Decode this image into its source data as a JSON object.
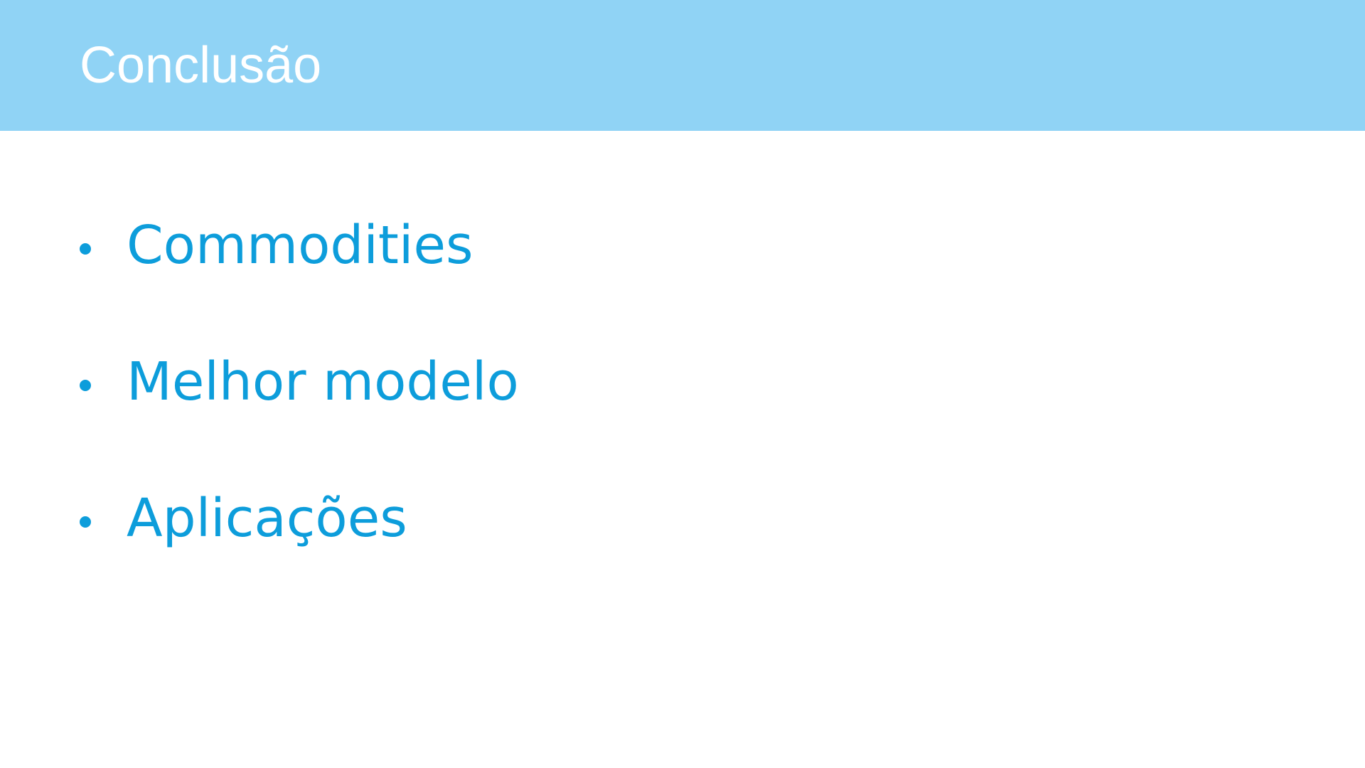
{
  "slide": {
    "title": "Conclusão",
    "bullets": [
      "Commodities",
      "Melhor modelo",
      "Aplicações"
    ]
  },
  "colors": {
    "title_bar": "#90d3f5",
    "title_text": "#ffffff",
    "bullet_text": "#0d9ddb",
    "background": "#ffffff"
  }
}
